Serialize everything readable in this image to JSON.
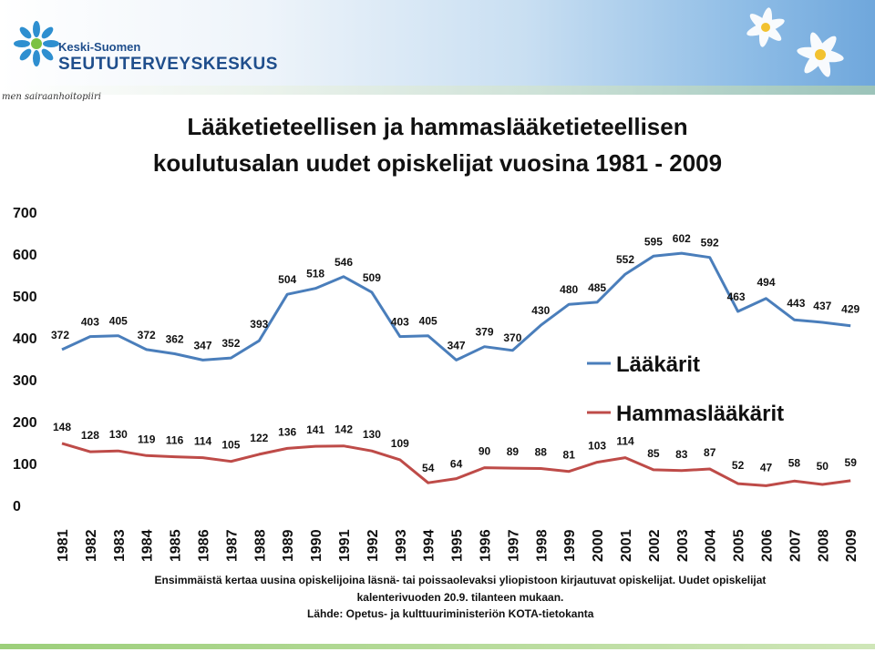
{
  "header": {
    "org_small": "Keski-Suomen",
    "org_big": "SEUTUTERVEYSKESKUS",
    "org_sub": "men sairaanhoitopiiri"
  },
  "title_line1": "Lääketieteellisen ja hammaslääketieteellisen",
  "title_line2": "koulutusalan  uudet opiskelijat vuosina 1981 - 2009",
  "footer": {
    "line1": "Ensimmäistä kertaa uusina opiskelijoina läsnä- tai poissaolevaksi yliopistoon kirjautuvat opiskelijat. Uudet opiskelijat",
    "line2": "kalenterivuoden 20.9. tilanteen mukaan.",
    "line3": "Lähde: Opetus- ja kulttuuriministeriön KOTA-tietokanta"
  },
  "chart_data": {
    "type": "line",
    "title": "",
    "xlabel": "",
    "ylabel": "",
    "ylim": [
      0,
      700
    ],
    "yticks": [
      0,
      100,
      200,
      300,
      400,
      500,
      600,
      700
    ],
    "grid": false,
    "legend": "right, inline",
    "x": [
      1981,
      1982,
      1983,
      1984,
      1985,
      1986,
      1987,
      1988,
      1989,
      1990,
      1991,
      1992,
      1993,
      1994,
      1995,
      1996,
      1997,
      1998,
      1999,
      2000,
      2001,
      2002,
      2003,
      2004,
      2005,
      2006,
      2007,
      2008,
      2009
    ],
    "series": [
      {
        "name": "Lääkärit",
        "color": "#4a7ebb",
        "values": [
          372,
          403,
          405,
          372,
          362,
          347,
          352,
          393,
          504,
          518,
          546,
          509,
          403,
          405,
          347,
          379,
          370,
          430,
          480,
          485,
          552,
          595,
          602,
          592,
          463,
          494,
          443,
          437,
          429
        ]
      },
      {
        "name": "Hammaslääkärit",
        "color": "#be4b48",
        "values": [
          148,
          128,
          130,
          119,
          116,
          114,
          105,
          122,
          136,
          141,
          142,
          130,
          109,
          54,
          64,
          90,
          89,
          88,
          81,
          103,
          114,
          85,
          83,
          87,
          52,
          47,
          58,
          50,
          59
        ]
      }
    ]
  }
}
